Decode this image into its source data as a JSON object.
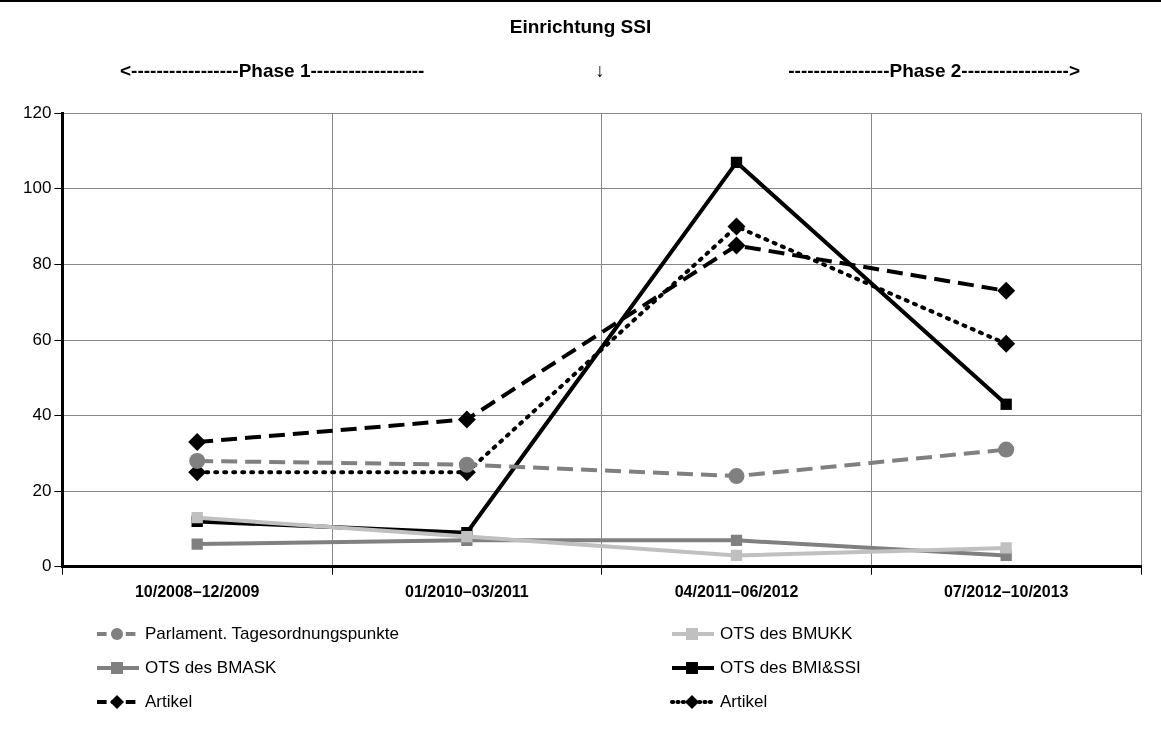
{
  "chart_data": {
    "type": "line",
    "title": "Einrichtung SSI",
    "annotations": [
      "<-----------------Phase 1------------------",
      "↓",
      "----------------Phase 2----------------->"
    ],
    "categories": [
      "10/2008–12/2009",
      "01/2010–03/2011",
      "04/2011–06/2012",
      "07/2012–10/2013"
    ],
    "series": [
      {
        "name": "Parlament. Tagesordnungspunkte",
        "color": "#808080",
        "values": [
          28,
          27,
          24,
          31
        ],
        "marker": "circle",
        "line_style": "dashed"
      },
      {
        "name": "OTS des BMUKK",
        "color": "#c0c0c0",
        "values": [
          13,
          8,
          3,
          5
        ],
        "marker": "square",
        "line_style": "solid"
      },
      {
        "name": "OTS des BMASK",
        "color": "#808080",
        "values": [
          6,
          7,
          7,
          3
        ],
        "marker": "square",
        "line_style": "solid"
      },
      {
        "name": "OTS des BMI&SSI",
        "color": "#000000",
        "values": [
          12,
          9,
          107,
          43
        ],
        "marker": "square",
        "line_style": "solid"
      },
      {
        "name": "Artikel",
        "color": "#000000",
        "values": [
          33,
          39,
          85,
          73
        ],
        "marker": "diamond",
        "line_style": "dashed"
      },
      {
        "name": "Artikel",
        "color": "#000000",
        "values": [
          25,
          25,
          90,
          59
        ],
        "marker": "diamond",
        "line_style": "dotted"
      }
    ],
    "ylim": [
      0,
      120
    ],
    "yticks": [
      0,
      20,
      40,
      60,
      80,
      100,
      120
    ],
    "grid": true,
    "legend": "bottom"
  }
}
